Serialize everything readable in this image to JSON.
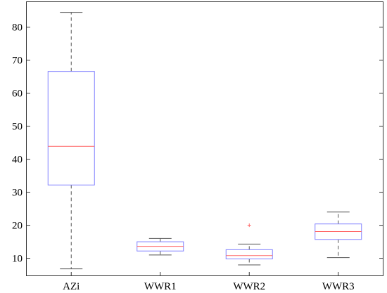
{
  "chart_data": {
    "type": "boxplot",
    "title": "",
    "xlabel": "",
    "ylabel": "",
    "categories": [
      "AZi",
      "WWR1",
      "WWR2",
      "WWR3"
    ],
    "boxes": [
      {
        "min": 6.8,
        "q1": 32.2,
        "median": 43.9,
        "q3": 66.6,
        "max": 84.5,
        "outliers": []
      },
      {
        "min": 11.0,
        "q1": 12.2,
        "median": 13.6,
        "q3": 15.0,
        "max": 16.0,
        "outliers": []
      },
      {
        "min": 8.0,
        "q1": 9.8,
        "median": 10.8,
        "q3": 12.6,
        "max": 14.3,
        "outliers": [
          20.0
        ]
      },
      {
        "min": 10.2,
        "q1": 15.7,
        "median": 18.1,
        "q3": 20.4,
        "max": 24.0,
        "outliers": []
      }
    ],
    "ylim": [
      4.8,
      87.6
    ],
    "yticks": [
      10,
      20,
      30,
      40,
      50,
      60,
      70,
      80
    ],
    "grid": false,
    "colors": {
      "box": "#8080ff",
      "median": "#ff6666",
      "whisker": "#555555",
      "outlier": "#ff6666",
      "axis": "#333333"
    }
  }
}
